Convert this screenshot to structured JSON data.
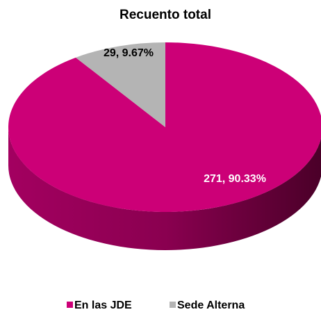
{
  "chart_data": {
    "type": "pie",
    "title": "Recuento total",
    "categories": [
      "En las JDE",
      "Sede Alterna"
    ],
    "values": [
      271,
      29
    ],
    "value_labels": [
      "271, 90.33%",
      "29, 9.67%"
    ],
    "colors": [
      "#cc0077",
      "#b4b4b4"
    ],
    "legend": "bottom",
    "3d": true
  }
}
